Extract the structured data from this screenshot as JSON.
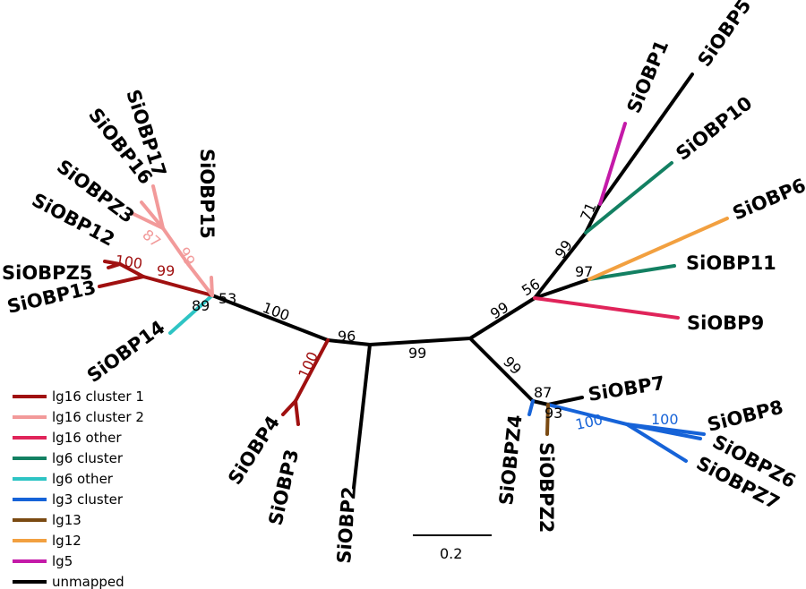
{
  "colors": {
    "lg16_cluster1": "#a01010",
    "lg16_cluster2": "#f29a9a",
    "lg16_other": "#e0245a",
    "lg6_cluster": "#138062",
    "lg6_other": "#2ec4c4",
    "lg3_cluster": "#1663d8",
    "lg13": "#7a4a12",
    "lg12": "#f2a040",
    "lg5": "#c41aa8",
    "unmapped": "#000000"
  },
  "tips": {
    "siobp1": "SiOBP1",
    "siobp5": "SiOBP5",
    "siobp10": "SiOBP10",
    "siobp6": "SiOBP6",
    "siobp11": "SiOBP11",
    "siobp9": "SiOBP9",
    "siobp7": "SiOBP7",
    "siobp8": "SiOBP8",
    "siobpz6": "SiOBPZ6",
    "siobpz7": "SiOBPZ7",
    "siobpz4": "SiOBPZ4",
    "siobpz2": "SiOBPZ2",
    "siobp2": "SiOBP2",
    "siobp3": "SiOBP3",
    "siobp4": "SiOBP4",
    "siobp14": "SiOBP14",
    "siobp13": "SiOBP13",
    "siobpz5": "SiOBPZ5",
    "siobp12": "SiOBP12",
    "siobpz3": "SiOBPZ3",
    "siobp16": "SiOBP16",
    "siobp17": "SiOBP17",
    "siobp15": "SiOBP15"
  },
  "bootstrap": {
    "b71": "71",
    "b99_upper": "99",
    "b97": "97",
    "b56": "56",
    "b99_right_upper": "99",
    "b99_right_lower": "99",
    "b87_right": "87",
    "b93": "93",
    "b100_lg3_a": "100",
    "b100_lg3_b": "100",
    "b99_center": "99",
    "b96": "96",
    "b100_lg16_c1_obp34": "100",
    "b100_left": "100",
    "b53": "53",
    "b89": "89",
    "b99_left_red": "99",
    "b100_left_red": "100",
    "b87_pink": "87",
    "b99_pink": "99"
  },
  "scale": {
    "label": "0.2"
  },
  "legend": {
    "items": [
      {
        "label": "lg16 cluster 1",
        "color": "#a01010"
      },
      {
        "label": "lg16 cluster 2",
        "color": "#f29a9a"
      },
      {
        "label": "lg16 other",
        "color": "#e0245a"
      },
      {
        "label": "lg6 cluster",
        "color": "#138062"
      },
      {
        "label": "lg6 other",
        "color": "#2ec4c4"
      },
      {
        "label": "lg3 cluster",
        "color": "#1663d8"
      },
      {
        "label": "lg13",
        "color": "#7a4a12"
      },
      {
        "label": "lg12",
        "color": "#f2a040"
      },
      {
        "label": "lg5",
        "color": "#c41aa8"
      },
      {
        "label": "unmapped",
        "color": "#000000"
      }
    ]
  }
}
